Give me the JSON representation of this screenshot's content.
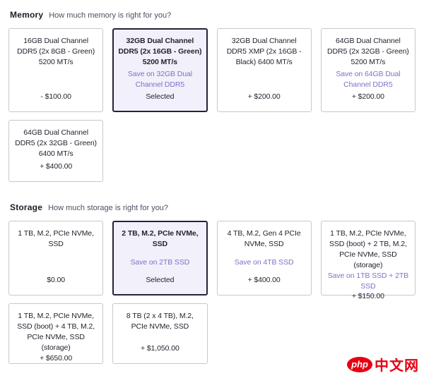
{
  "theme": {
    "accent_purple": "#7b72c9",
    "selected_border": "#23233a",
    "selected_background": "#f2f0fa",
    "card_border": "#c7c8ca",
    "watermark_red": "#e60012"
  },
  "memory": {
    "title": "Memory",
    "subtitle": "How much memory is right for you?",
    "cards": [
      {
        "title": "16GB Dual Channel DDR5 (2x 8GB - Green) 5200 MT/s",
        "price": "- $100.00"
      },
      {
        "title": "32GB Dual Channel DDR5 (2x 16GB - Green) 5200 MT/s",
        "save": "Save on 32GB Dual Channel DDR5",
        "status": "Selected",
        "selected": true
      },
      {
        "title": "32GB Dual Channel DDR5 XMP (2x 16GB - Black) 6400 MT/s",
        "price": "+ $200.00"
      },
      {
        "title": "64GB Dual Channel DDR5 (2x 32GB - Green) 5200 MT/s",
        "save": "Save on 64GB Dual Channel DDR5",
        "price": "+ $200.00"
      },
      {
        "title": "64GB Dual Channel DDR5 (2x 32GB - Green) 6400 MT/s",
        "price": "+ $400.00"
      }
    ]
  },
  "storage": {
    "title": "Storage",
    "subtitle": "How much storage is right for you?",
    "cards": [
      {
        "title": "1 TB, M.2, PCIe NVMe, SSD",
        "price": "$0.00"
      },
      {
        "title": "2 TB, M.2, PCIe NVMe, SSD",
        "save": "Save on 2TB SSD",
        "status": "Selected",
        "selected": true
      },
      {
        "title": "4 TB, M.2, Gen 4 PCIe NVMe, SSD",
        "save": "Save on 4TB SSD",
        "price": "+ $400.00"
      },
      {
        "title": "1 TB, M.2, PCIe NVMe, SSD (boot) + 2 TB, M.2, PCIe NVMe, SSD (storage)",
        "save": "Save on 1TB SSD + 2TB SSD",
        "price": "+ $150.00"
      },
      {
        "title": "1 TB, M.2, PCIe NVMe, SSD (boot) + 4 TB, M.2, PCIe NVMe, SSD (storage)",
        "price": "+ $650.00"
      },
      {
        "title": "8 TB (2 x 4 TB), M.2, PCIe NVMe, SSD",
        "price": "+ $1,050.00"
      }
    ]
  },
  "watermark": {
    "logo": "php",
    "site": "中文网"
  }
}
